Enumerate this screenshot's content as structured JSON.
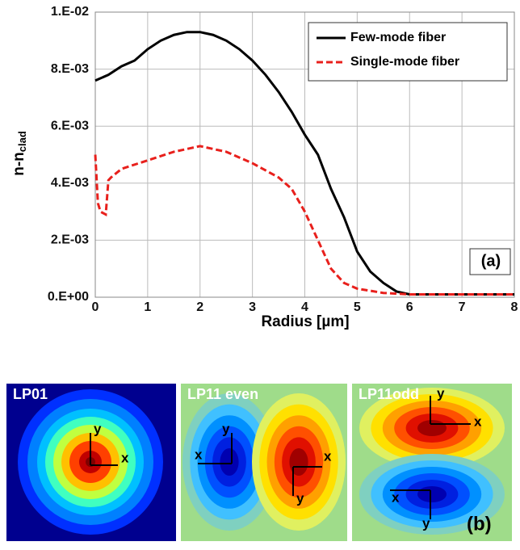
{
  "chart_data": {
    "type": "line",
    "y_label": {
      "main": "n-n",
      "sub": "clad"
    },
    "x_label": "Radius [µm]",
    "annotation": "(a)",
    "grid": true,
    "legend": "top-right",
    "xlim": [
      0,
      8
    ],
    "xticks": [
      0,
      1,
      2,
      3,
      4,
      5,
      6,
      7,
      8
    ],
    "ylim": [
      0,
      0.01
    ],
    "yticks": [
      {
        "value": 0,
        "label": "0.E+00"
      },
      {
        "value": 0.002,
        "label": "2.E-03"
      },
      {
        "value": 0.004,
        "label": "4.E-03"
      },
      {
        "value": 0.006,
        "label": "6.E-03"
      },
      {
        "value": 0.008,
        "label": "8.E-03"
      },
      {
        "value": 0.01,
        "label": "1.E-02"
      }
    ],
    "series": [
      {
        "name": "Few-mode fiber",
        "color": "#000000",
        "dash": false,
        "x": [
          0,
          0.25,
          0.5,
          0.75,
          1,
          1.25,
          1.5,
          1.75,
          2,
          2.25,
          2.5,
          2.75,
          3,
          3.25,
          3.5,
          3.75,
          4,
          4.25,
          4.5,
          4.75,
          5,
          5.25,
          5.5,
          5.75,
          6,
          6.5,
          7,
          7.5,
          8
        ],
        "values": [
          0.0076,
          0.0078,
          0.0081,
          0.0083,
          0.0087,
          0.009,
          0.0092,
          0.0093,
          0.0093,
          0.0092,
          0.009,
          0.0087,
          0.0083,
          0.0078,
          0.0072,
          0.0065,
          0.0057,
          0.005,
          0.0038,
          0.0028,
          0.0016,
          0.0009,
          0.0005,
          0.0002,
          0.0001,
          0.0001,
          0.0001,
          0.0001,
          0.0001
        ]
      },
      {
        "name": "Single-mode fiber",
        "color": "#e8201c",
        "dash": true,
        "x": [
          0,
          0.05,
          0.1,
          0.2,
          0.25,
          0.3,
          0.5,
          1,
          1.5,
          2,
          2.5,
          3,
          3.5,
          3.75,
          4,
          4.25,
          4.5,
          4.75,
          5,
          5.5,
          6,
          7,
          8
        ],
        "values": [
          0.005,
          0.0033,
          0.003,
          0.0029,
          0.0041,
          0.0042,
          0.0045,
          0.0048,
          0.0051,
          0.0053,
          0.0051,
          0.0047,
          0.0042,
          0.0038,
          0.003,
          0.002,
          0.001,
          0.0005,
          0.0003,
          0.00015,
          0.0001,
          0.0001,
          0.0001
        ]
      }
    ]
  },
  "modes": [
    {
      "label": "LP01"
    },
    {
      "label": "LP11 even"
    },
    {
      "label": "LP11odd"
    }
  ],
  "axis_x": "x",
  "axis_y": "y",
  "panel_label": "(b)"
}
